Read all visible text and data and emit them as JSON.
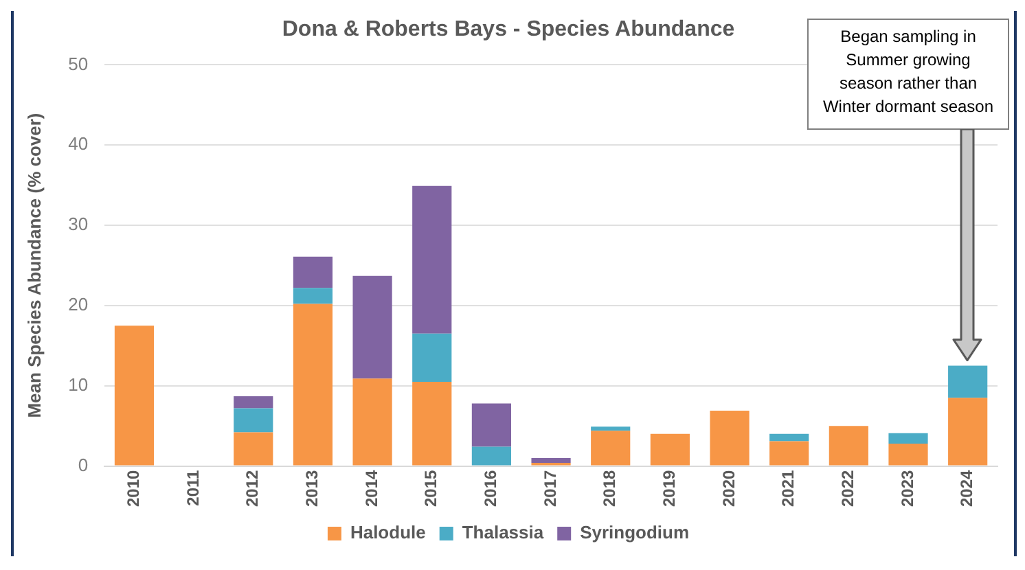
{
  "chart_data": {
    "type": "bar",
    "title": "Dona & Roberts Bays - Species Abundance",
    "ylabel": "Mean Species Abundance (% cover)",
    "categories": [
      "2010",
      "2011",
      "2012",
      "2013",
      "2014",
      "2015",
      "2016",
      "2017",
      "2018",
      "2019",
      "2020",
      "2021",
      "2022",
      "2023",
      "2024"
    ],
    "series": [
      {
        "name": "Halodule",
        "color": "#f79646",
        "values": [
          17.5,
          null,
          4.2,
          20.2,
          10.9,
          10.5,
          null,
          0.4,
          4.4,
          4.0,
          6.9,
          3.1,
          5.0,
          2.8,
          8.5
        ]
      },
      {
        "name": "Thalassia",
        "color": "#4bacc6",
        "values": [
          null,
          null,
          3.0,
          2.0,
          null,
          6.0,
          2.4,
          null,
          0.5,
          null,
          null,
          0.9,
          null,
          1.3,
          4.0
        ]
      },
      {
        "name": "Syringodium",
        "color": "#8064a2",
        "values": [
          null,
          null,
          1.5,
          3.9,
          12.8,
          18.4,
          5.4,
          0.6,
          null,
          null,
          null,
          null,
          null,
          null,
          null
        ]
      }
    ],
    "stacked": true,
    "ylim": [
      0,
      50
    ],
    "yticks": [
      0,
      10,
      20,
      30,
      40,
      50
    ],
    "grid": "y",
    "legend": "bottom",
    "annotations": [
      "Began sampling in Summer growing season rather than Winter dormant season"
    ]
  }
}
